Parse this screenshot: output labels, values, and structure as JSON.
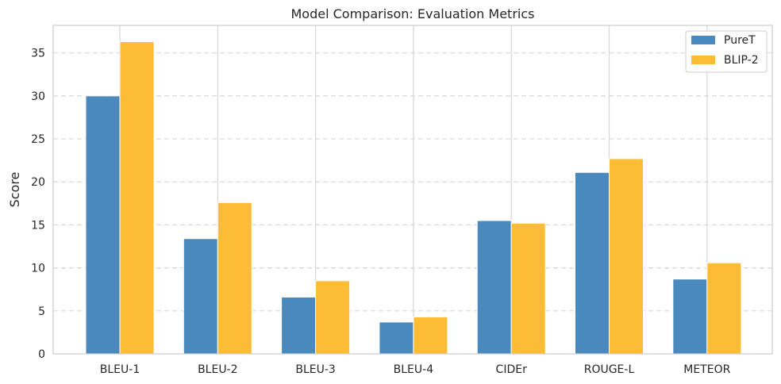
{
  "chart_data": {
    "type": "bar",
    "title": "Model Comparison: Evaluation Metrics",
    "xlabel": "",
    "ylabel": "Score",
    "categories": [
      "BLEU-1",
      "BLEU-2",
      "BLEU-3",
      "BLEU-4",
      "CIDEr",
      "ROUGE-L",
      "METEOR"
    ],
    "series": [
      {
        "name": "PureT",
        "color": "#4a89be",
        "values": [
          30.0,
          13.4,
          6.6,
          3.7,
          15.5,
          21.1,
          8.7
        ]
      },
      {
        "name": "BLIP-2",
        "color": "#fcbc34",
        "values": [
          36.3,
          17.6,
          8.5,
          4.3,
          15.2,
          22.7,
          10.6
        ]
      }
    ],
    "ylim": [
      0,
      38.2
    ],
    "yticks": [
      0,
      5,
      10,
      15,
      20,
      25,
      30,
      35
    ],
    "grid": {
      "y": "dashed",
      "x": "solid"
    },
    "legend_position": "top-right"
  }
}
